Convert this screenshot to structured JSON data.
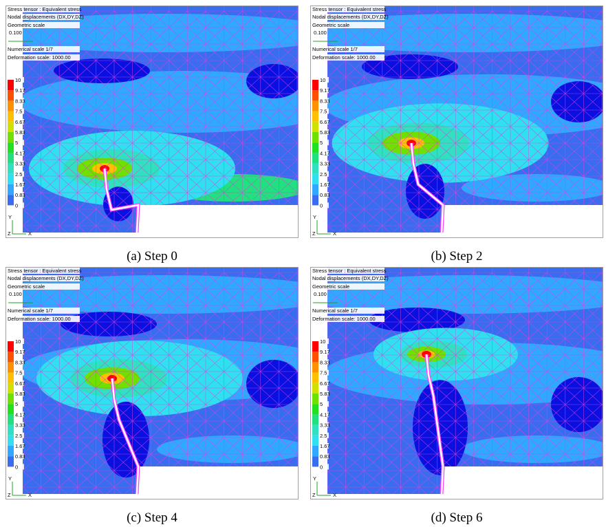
{
  "panels": [
    {
      "header": {
        "title": "Stress tensor : Equivalent stress",
        "displacements": "Nodal displacements (DX,DY,DZ)",
        "geometric_scale": "Geometric scale",
        "geometric_value": "0.100",
        "numerical_scale": "Numerical scale 1/7",
        "deformation_scale": "Deformation scale: 1000.00"
      },
      "legend": [
        "10",
        "9.17",
        "8.33",
        "7.5",
        "6.67",
        "5.83",
        "5",
        "4.17",
        "3.33",
        "2.5",
        "1.67",
        "0.83",
        "0"
      ],
      "axes": {
        "y": "Y",
        "z": "Z",
        "x": "X"
      },
      "caption": "(a) Step 0"
    },
    {
      "header": {
        "title": "Stress tensor : Equivalent stress",
        "displacements": "Nodal displacements (DX,DY,DZ)",
        "geometric_scale": "Geometric scale",
        "geometric_value": "0.100",
        "numerical_scale": "Numerical scale 1/7",
        "deformation_scale": "Deformation scale: 1000.00"
      },
      "legend": [
        "10",
        "9.17",
        "8.33",
        "7.5",
        "6.67",
        "5.83",
        "5",
        "4.17",
        "3.33",
        "2.5",
        "1.67",
        "0.83",
        "0"
      ],
      "axes": {
        "y": "Y",
        "z": "Z",
        "x": "X"
      },
      "caption": "(b) Step 2"
    },
    {
      "header": {
        "title": "Stress tensor : Equivalent stress",
        "displacements": "Nodal displacements (DX,DY,DZ)",
        "geometric_scale": "Geometric scale",
        "geometric_value": "0.100",
        "numerical_scale": "Numerical scale 1/7",
        "deformation_scale": "Deformation scale: 1000.00"
      },
      "legend": [
        "10",
        "9.17",
        "8.33",
        "7.5",
        "6.67",
        "5.83",
        "5",
        "4.17",
        "3.33",
        "2.5",
        "1.67",
        "0.83",
        "0"
      ],
      "axes": {
        "y": "Y",
        "z": "Z",
        "x": "X"
      },
      "caption": "(c) Step 4"
    },
    {
      "header": {
        "title": "Stress tensor : Equivalent stress",
        "displacements": "Nodal displacements (DX,DY,DZ)",
        "geometric_scale": "Geometric scale",
        "geometric_value": "0.100",
        "numerical_scale": "Numerical scale 1/7",
        "deformation_scale": "Deformation scale: 1000.00"
      },
      "legend": [
        "10",
        "9.17",
        "8.33",
        "7.5",
        "6.67",
        "5.83",
        "5",
        "4.17",
        "3.33",
        "2.5",
        "1.67",
        "0.83",
        "0"
      ],
      "axes": {
        "y": "Y",
        "z": "Z",
        "x": "X"
      },
      "caption": "(d) Step 6"
    }
  ]
}
